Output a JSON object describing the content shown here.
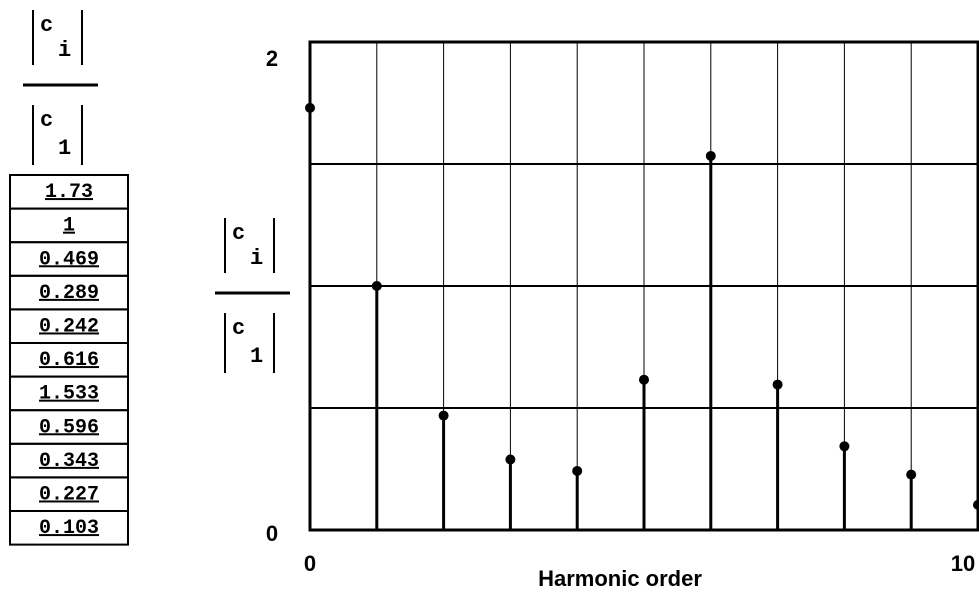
{
  "chart_data": {
    "type": "stem",
    "ratio_label": {
      "top": "c",
      "top_sub": "i",
      "bottom": "c",
      "bottom_sub": "1"
    },
    "xlabel": "Harmonic order",
    "x": [
      0,
      1,
      2,
      3,
      4,
      5,
      6,
      7,
      8,
      9,
      10
    ],
    "values": [
      1.73,
      1,
      0.469,
      0.289,
      0.242,
      0.616,
      1.533,
      0.596,
      0.343,
      0.227,
      0.103
    ],
    "xlim": [
      0,
      10
    ],
    "xticks": [
      0,
      10
    ],
    "ylim": [
      0,
      2
    ],
    "yticks": [
      0,
      2
    ],
    "xgrid": [
      1,
      2,
      3,
      4,
      5,
      6,
      7,
      8,
      9
    ],
    "ygrid": [
      0.5,
      1,
      1.5
    ],
    "color": "#000000"
  }
}
